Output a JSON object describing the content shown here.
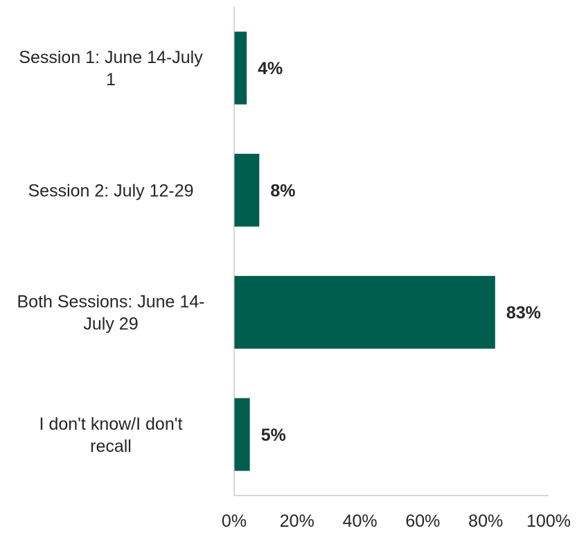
{
  "chart_data": {
    "type": "bar",
    "orientation": "horizontal",
    "categories": [
      [
        "Session 1: June 14-July",
        "1"
      ],
      [
        "Session 2: July 12-29"
      ],
      [
        "Both Sessions: June 14-",
        "July 29"
      ],
      [
        "I don't know/I don't",
        "recall"
      ]
    ],
    "values": [
      4,
      8,
      83,
      5
    ],
    "value_labels": [
      "4%",
      "8%",
      "83%",
      "5%"
    ],
    "xlim": [
      0,
      100
    ],
    "x_ticks": [
      0,
      20,
      40,
      60,
      80,
      100
    ],
    "x_tick_labels": [
      "0%",
      "20%",
      "40%",
      "60%",
      "80%",
      "100%"
    ],
    "grid": false,
    "legend": "none",
    "bar_color": "#005e4f"
  }
}
